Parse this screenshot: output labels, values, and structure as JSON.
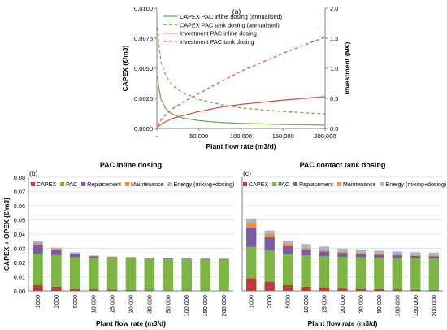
{
  "colors": {
    "green": "#70AD47",
    "red": "#D9534F",
    "capex": "#C0393B",
    "pac": "#7DB544",
    "replacement": "#7B5AA6",
    "maintenance": "#F0913A",
    "energy": "#9DB8D9",
    "grid": "#D9D9D9",
    "axis": "#808080"
  },
  "chart_data": [
    {
      "id": "a",
      "type": "line",
      "panel_label": "(a)",
      "xlabel": "Plant flow rate (m3/d)",
      "ylabel": "CAPEX (€/m3)",
      "y2label": "Investment (M€)",
      "xlim": [
        0,
        200000
      ],
      "ylim": [
        0,
        0.01
      ],
      "y2lim": [
        0,
        2
      ],
      "x_ticks": [
        0,
        50000,
        100000,
        150000,
        200000
      ],
      "x_tick_labels": [
        "-",
        "50,000",
        "100,000",
        "150,000",
        "200,000"
      ],
      "y_ticks": [
        0,
        0.0025,
        0.005,
        0.0075,
        0.01
      ],
      "y_tick_labels": [
        "0.0000",
        "0.0025",
        "0.0050",
        "0.0075",
        "0.0100"
      ],
      "y2_ticks": [
        0,
        0.5,
        1.0,
        1.5,
        2.0
      ],
      "y2_tick_labels": [
        "0.0",
        "0.5",
        "1.0",
        "1.5",
        "2.0"
      ],
      "grid": false,
      "legend_position": "top-left",
      "series": [
        {
          "name": "CAPEX PAC inline dosing (annualised)",
          "axis": "left",
          "style": "solid",
          "color": "#70AD47",
          "x": [
            1000,
            2000,
            5000,
            10000,
            15000,
            20000,
            30000,
            50000,
            75000,
            100000,
            150000,
            200000
          ],
          "y": [
            0.0044,
            0.0035,
            0.0024,
            0.0017,
            0.00135,
            0.00115,
            0.00088,
            0.00065,
            0.0005,
            0.00042,
            0.00033,
            0.00028
          ]
        },
        {
          "name": "CAPEX PAC tank dosing (annualised)",
          "axis": "left",
          "style": "dashed",
          "color": "#70AD47",
          "x": [
            1000,
            2000,
            5000,
            10000,
            15000,
            20000,
            30000,
            50000,
            75000,
            100000,
            150000,
            200000
          ],
          "y": [
            0.0084,
            0.0072,
            0.0055,
            0.0045,
            0.0039,
            0.0035,
            0.003,
            0.0024,
            0.002,
            0.0017,
            0.0014,
            0.0012
          ]
        },
        {
          "name": "Investment PAC inline dosing",
          "axis": "right",
          "style": "solid",
          "color": "#D9534F",
          "x": [
            1000,
            2000,
            5000,
            10000,
            20000,
            30000,
            50000,
            75000,
            100000,
            150000,
            200000
          ],
          "y": [
            0.02,
            0.035,
            0.07,
            0.11,
            0.17,
            0.21,
            0.28,
            0.35,
            0.4,
            0.47,
            0.53
          ]
        },
        {
          "name": "Investment PAC tank dosing",
          "axis": "right",
          "style": "dashed",
          "color": "#D9534F",
          "x": [
            1000,
            2000,
            5000,
            10000,
            20000,
            30000,
            50000,
            75000,
            100000,
            150000,
            200000
          ],
          "y": [
            0.04,
            0.07,
            0.14,
            0.22,
            0.34,
            0.43,
            0.58,
            0.77,
            0.95,
            1.25,
            1.52
          ]
        }
      ]
    },
    {
      "id": "b",
      "type": "bar",
      "stacked": true,
      "panel_label": "(b)",
      "title": "PAC inline dosing",
      "xlabel": "Plant flow rate (m3/d)",
      "ylabel": "CAPEX + OPEX (€/m3)",
      "ylim": [
        0,
        0.08
      ],
      "y_ticks": [
        0,
        0.01,
        0.02,
        0.03,
        0.04,
        0.05,
        0.06,
        0.07,
        0.08
      ],
      "y_tick_labels": [
        "0.00",
        "0.01",
        "0.02",
        "0.03",
        "0.04",
        "0.05",
        "0.06",
        "0.07",
        "0.08"
      ],
      "grid": true,
      "legend_position": "top",
      "categories": [
        "1000",
        "2000",
        "5000",
        "10,000",
        "15,000",
        "20,000",
        "30,000",
        "50,000",
        "100,000",
        "150,000",
        "200,000"
      ],
      "series": [
        {
          "name": "CAPEX",
          "color": "#C0393B",
          "values": [
            0.004,
            0.003,
            0.0015,
            0.001,
            0.0008,
            0.0007,
            0.0005,
            0.0004,
            0.0003,
            0.00025,
            0.0002
          ]
        },
        {
          "name": "PAC",
          "color": "#7DB544",
          "values": [
            0.0222,
            0.0222,
            0.0222,
            0.0222,
            0.0222,
            0.0222,
            0.0222,
            0.0222,
            0.0222,
            0.0222,
            0.0222
          ]
        },
        {
          "name": "Replacement",
          "color": "#7B5AA6",
          "values": [
            0.006,
            0.0035,
            0.0025,
            0.0012,
            0.0008,
            0.0006,
            0.0005,
            0.0004,
            0.0003,
            0.0003,
            0.0002
          ]
        },
        {
          "name": "Maintenance",
          "color": "#F0913A",
          "values": [
            0.0015,
            0.001,
            0.0005,
            0.0003,
            0.0002,
            0.0002,
            0.0002,
            0.0001,
            0.0001,
            0.0001,
            0.0001
          ]
        },
        {
          "name": "Energy (mixing+dosing)",
          "color": "#9DB8D9",
          "values": [
            0.0013,
            0.0008,
            0.0005,
            0.0003,
            0.0002,
            0.0002,
            0.0001,
            0.0001,
            0.0001,
            0.0001,
            0.0001
          ]
        }
      ]
    },
    {
      "id": "c",
      "type": "bar",
      "stacked": true,
      "panel_label": "(c)",
      "title": "PAC contact tank dosing",
      "xlabel": "Plant flow rate (m3/d)",
      "ylabel": "",
      "ylim": [
        0,
        0.08
      ],
      "y_ticks": [
        0,
        0.01,
        0.02,
        0.03,
        0.04,
        0.05,
        0.06,
        0.07,
        0.08
      ],
      "grid": true,
      "legend_position": "top",
      "categories": [
        "1000",
        "2000",
        "5000",
        "10,000",
        "15,000",
        "20,000",
        "30,000",
        "50,000",
        "100,000",
        "150,000",
        "200,000"
      ],
      "series": [
        {
          "name": "CAPEX",
          "color": "#C0393B",
          "values": [
            0.009,
            0.0065,
            0.004,
            0.003,
            0.0025,
            0.002,
            0.0017,
            0.0013,
            0.001,
            0.0008,
            0.0007
          ]
        },
        {
          "name": "PAC",
          "color": "#7DB544",
          "values": [
            0.022,
            0.022,
            0.022,
            0.022,
            0.022,
            0.022,
            0.022,
            0.022,
            0.022,
            0.022,
            0.022
          ]
        },
        {
          "name": "Replacement",
          "color": "#7B5AA6",
          "values": [
            0.0135,
            0.0095,
            0.0055,
            0.004,
            0.0033,
            0.0028,
            0.0025,
            0.0022,
            0.0021,
            0.0019,
            0.0018
          ]
        },
        {
          "name": "Maintenance",
          "color": "#F0913A",
          "values": [
            0.0035,
            0.0025,
            0.0018,
            0.0015,
            0.0012,
            0.001,
            0.001,
            0.0008,
            0.0007,
            0.0006,
            0.0005
          ]
        },
        {
          "name": "Energy (mixing+dosing)",
          "color": "#9DB8D9",
          "values": [
            0.003,
            0.002,
            0.0022,
            0.0025,
            0.0022,
            0.002,
            0.002,
            0.002,
            0.002,
            0.002,
            0.002
          ]
        }
      ]
    }
  ]
}
